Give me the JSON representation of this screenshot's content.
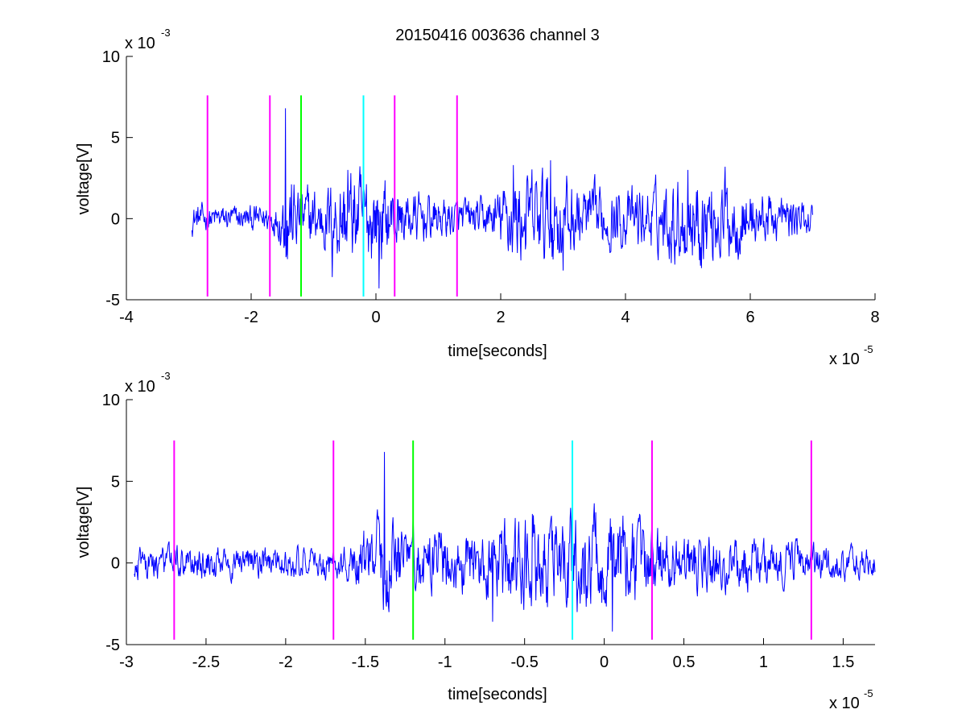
{
  "figure_title": "20150416 003636 channel 3",
  "chart_data": [
    {
      "type": "line",
      "title": "20150416 003636 channel 3",
      "xlabel": "time[seconds]",
      "ylabel": "voltage[V]",
      "x_exponent_label": "x 10",
      "x_exponent": "-5",
      "y_exponent_label": "x 10",
      "y_exponent": "-3",
      "xlim": [
        -4e-05,
        8e-05
      ],
      "ylim": [
        -0.005,
        0.01
      ],
      "xticks": [
        -4e-05,
        -2e-05,
        0,
        2e-05,
        4e-05,
        6e-05,
        8e-05
      ],
      "xtick_labels": [
        "-4",
        "-2",
        "0",
        "2",
        "4",
        "6",
        "8"
      ],
      "yticks": [
        -0.005,
        0,
        0.005,
        0.01
      ],
      "ytick_labels": [
        "-5",
        "0",
        "5",
        "10"
      ],
      "grid": false,
      "series": [
        {
          "color": "#0000ff",
          "signal_range_x": [
            -2.95e-05,
            7e-05
          ],
          "signal_envelope": [
            [
              -2.95e-05,
              0.001
            ],
            [
              -2.7e-05,
              0.0008
            ],
            [
              -2e-05,
              0.0008
            ],
            [
              -1.6e-05,
              0.001
            ],
            [
              -1.4e-05,
              0.003
            ],
            [
              -1.2e-05,
              0.002
            ],
            [
              -8e-06,
              0.002
            ],
            [
              -6e-06,
              0.0028
            ],
            [
              -4e-06,
              0.003
            ],
            [
              0.0,
              0.0028
            ],
            [
              4e-06,
              0.0018
            ],
            [
              1.2e-05,
              0.0012
            ],
            [
              1.8e-05,
              0.0012
            ],
            [
              2.2e-05,
              0.0028
            ],
            [
              2.8e-05,
              0.003
            ],
            [
              3.4e-05,
              0.002
            ],
            [
              4e-05,
              0.0018
            ],
            [
              4.6e-05,
              0.0022
            ],
            [
              5e-05,
              0.003
            ],
            [
              5.6e-05,
              0.0026
            ],
            [
              6.2e-05,
              0.0016
            ],
            [
              7e-05,
              0.001
            ]
          ],
          "peaks": [
            [
              -1.45e-05,
              0.0068
            ],
            [
              -1.42e-05,
              -0.0025
            ],
            [
              -1.2e-05,
              0.003
            ],
            [
              -7e-06,
              -0.0036
            ],
            [
              -4.5e-06,
              0.003
            ],
            [
              5e-07,
              -0.0043
            ],
            [
              3e-06,
              0.002
            ],
            [
              2.2e-05,
              0.0033
            ],
            [
              2.8e-05,
              0.0036
            ],
            [
              3e-05,
              -0.0032
            ],
            [
              5e-05,
              0.003
            ],
            [
              5.2e-05,
              -0.0029
            ],
            [
              5.6e-05,
              0.0032
            ]
          ]
        }
      ],
      "vlines": [
        {
          "x": -2.7e-05,
          "color": "#ff00ff",
          "ymin": -0.0048,
          "ymax": 0.0076
        },
        {
          "x": -1.7e-05,
          "color": "#ff00ff",
          "ymin": -0.0048,
          "ymax": 0.0076
        },
        {
          "x": -1.2e-05,
          "color": "#00ff00",
          "ymin": -0.0048,
          "ymax": 0.0076
        },
        {
          "x": -2e-06,
          "color": "#00ffff",
          "ymin": -0.0048,
          "ymax": 0.0076
        },
        {
          "x": 3e-06,
          "color": "#ff00ff",
          "ymin": -0.0048,
          "ymax": 0.0076
        },
        {
          "x": 1.3e-05,
          "color": "#ff00ff",
          "ymin": -0.0048,
          "ymax": 0.0076
        }
      ]
    },
    {
      "type": "line",
      "title": "",
      "xlabel": "time[seconds]",
      "ylabel": "voltage[V]",
      "x_exponent_label": "x 10",
      "x_exponent": "-5",
      "y_exponent_label": "x 10",
      "y_exponent": "-3",
      "xlim": [
        -3e-05,
        1.7e-05
      ],
      "ylim": [
        -0.005,
        0.01
      ],
      "xticks": [
        -3e-05,
        -2.5e-05,
        -2e-05,
        -1.5e-05,
        -1e-05,
        -5e-06,
        0,
        5e-06,
        1e-05,
        1.5e-05
      ],
      "xtick_labels": [
        "-3",
        "-2.5",
        "-2",
        "-1.5",
        "-1",
        "-0.5",
        "0",
        "0.5",
        "1",
        "1.5"
      ],
      "yticks": [
        -0.005,
        0,
        0.005,
        0.01
      ],
      "ytick_labels": [
        "-5",
        "0",
        "5",
        "10"
      ],
      "grid": false,
      "series": [
        {
          "color": "#0000ff",
          "signal_range_x": [
            -2.95e-05,
            1.7e-05
          ],
          "signal_envelope": [
            [
              -2.95e-05,
              0.001
            ],
            [
              -2.7e-05,
              0.001
            ],
            [
              -2e-05,
              0.0009
            ],
            [
              -1.6e-05,
              0.001
            ],
            [
              -1.4e-05,
              0.003
            ],
            [
              -1.2e-05,
              0.002
            ],
            [
              -8e-06,
              0.0018
            ],
            [
              -6e-06,
              0.0026
            ],
            [
              -4e-06,
              0.0028
            ],
            [
              0.0,
              0.003
            ],
            [
              4e-06,
              0.002
            ],
            [
              8e-06,
              0.0016
            ],
            [
              1.2e-05,
              0.0012
            ],
            [
              1.7e-05,
              0.0008
            ]
          ],
          "peaks": [
            [
              -1.38e-05,
              0.0068
            ],
            [
              -1.36e-05,
              -0.0024
            ],
            [
              -1.2e-05,
              0.003
            ],
            [
              -7e-06,
              -0.0036
            ],
            [
              -4.5e-06,
              0.003
            ],
            [
              5e-07,
              -0.0042
            ],
            [
              3e-06,
              0.002
            ]
          ]
        }
      ],
      "vlines": [
        {
          "x": -2.7e-05,
          "color": "#ff00ff",
          "ymin": -0.0047,
          "ymax": 0.0075
        },
        {
          "x": -1.7e-05,
          "color": "#ff00ff",
          "ymin": -0.0047,
          "ymax": 0.0075
        },
        {
          "x": -1.2e-05,
          "color": "#00ff00",
          "ymin": -0.0047,
          "ymax": 0.0075
        },
        {
          "x": -2e-06,
          "color": "#00ffff",
          "ymin": -0.0047,
          "ymax": 0.0075
        },
        {
          "x": 3e-06,
          "color": "#ff00ff",
          "ymin": -0.0047,
          "ymax": 0.0075
        },
        {
          "x": 1.3e-05,
          "color": "#ff00ff",
          "ymin": -0.0047,
          "ymax": 0.0075
        }
      ]
    }
  ]
}
